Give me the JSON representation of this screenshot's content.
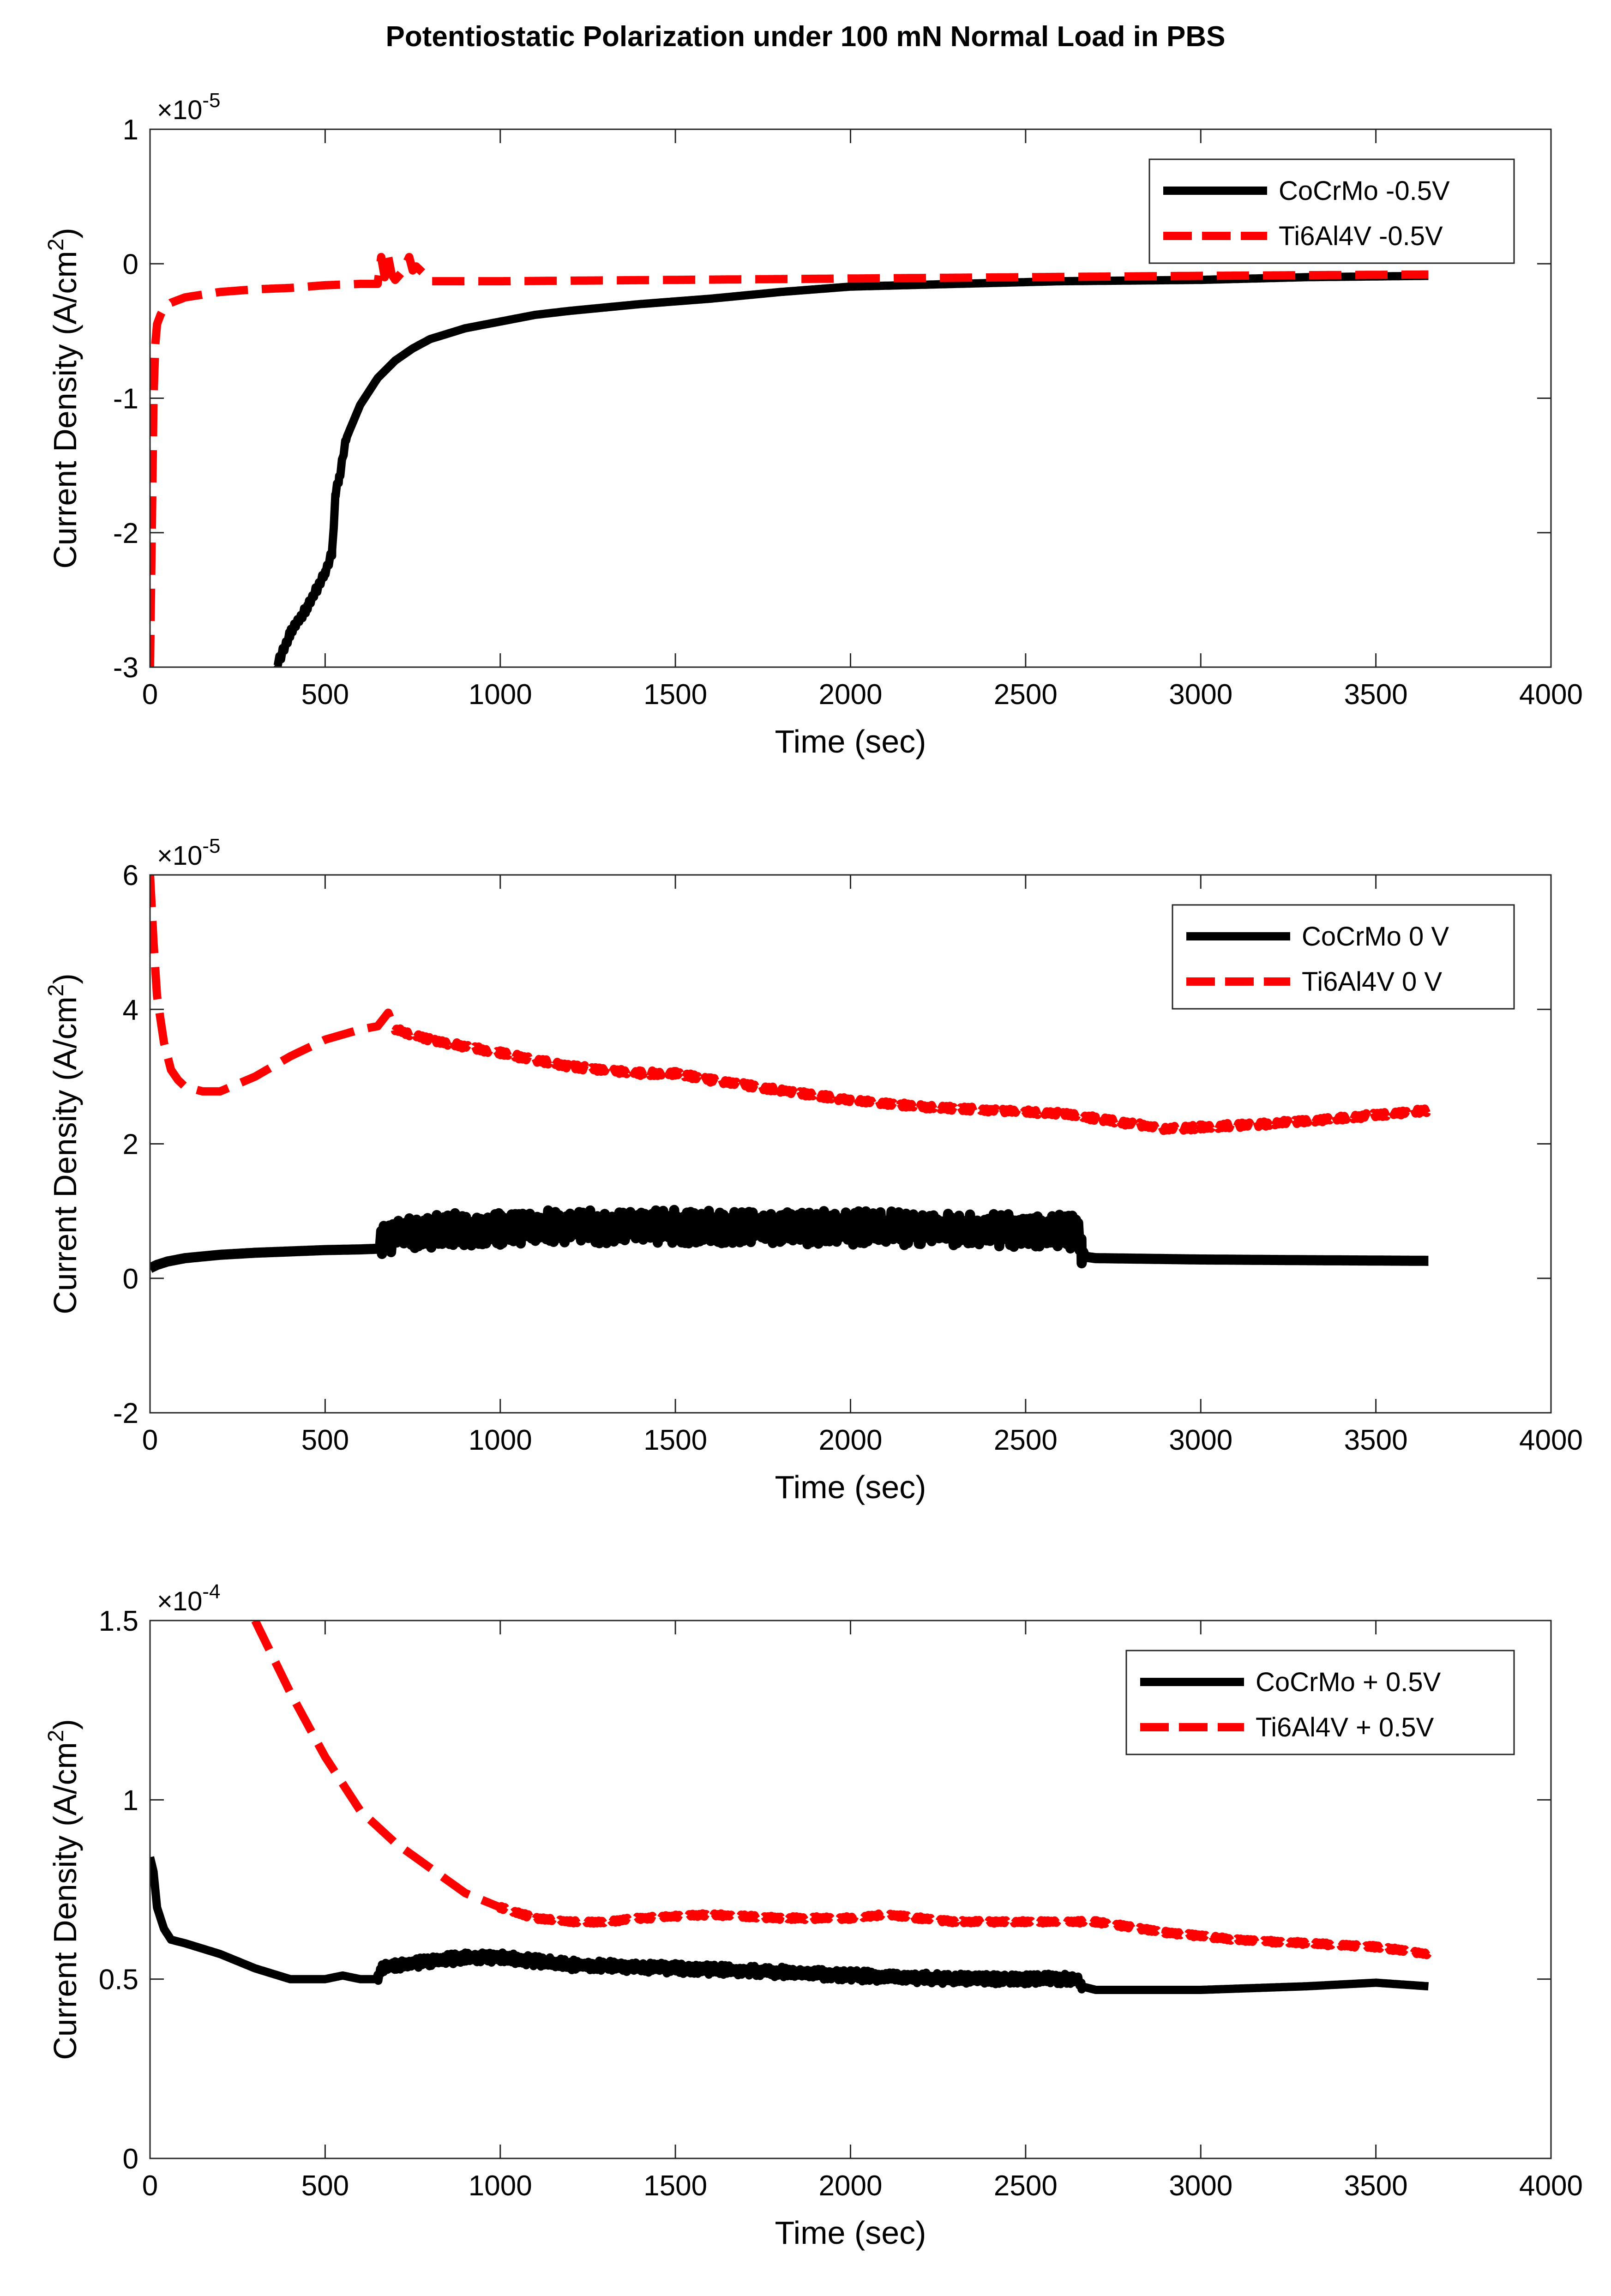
{
  "title": "Potentiostatic Polarization under 100 mN Normal Load in PBS",
  "chart_data": [
    {
      "type": "line",
      "xlabel": "Time (sec)",
      "ylabel_main": "Current Density (A/cm",
      "ylabel_sup": "2",
      "ylabel_close": ")",
      "exponent_base": "×10",
      "exponent_power": "-5",
      "xlim": [
        0,
        4000
      ],
      "ylim": [
        -3,
        1
      ],
      "xticks": [
        0,
        500,
        1000,
        1500,
        2000,
        2500,
        3000,
        3500,
        4000
      ],
      "xtick_labels": [
        "0",
        "500",
        "1000",
        "1500",
        "2000",
        "2500",
        "3000",
        "3500",
        "4000"
      ],
      "yticks": [
        -3,
        -2,
        -1,
        0,
        1
      ],
      "ytick_labels": [
        "-3",
        "-2",
        "-1",
        "0",
        "1"
      ],
      "legend_position": "top-right",
      "series": [
        {
          "name": "CoCrMo -0.5V",
          "color": "#000000",
          "dash": "solid",
          "noise": 0.03,
          "noise_range": [
            350,
            560
          ],
          "x": [
            360,
            400,
            450,
            500,
            520,
            530,
            540,
            560,
            600,
            650,
            700,
            750,
            800,
            900,
            1000,
            1100,
            1200,
            1400,
            1600,
            1800,
            2000,
            2300,
            2600,
            3000,
            3300,
            3650
          ],
          "y": [
            -3.0,
            -2.75,
            -2.55,
            -2.3,
            -2.15,
            -1.7,
            -1.6,
            -1.3,
            -1.05,
            -0.85,
            -0.72,
            -0.63,
            -0.56,
            -0.48,
            -0.43,
            -0.38,
            -0.35,
            -0.3,
            -0.26,
            -0.21,
            -0.17,
            -0.15,
            -0.13,
            -0.12,
            -0.1,
            -0.09
          ]
        },
        {
          "name": "Ti6Al4V -0.5V",
          "color": "#ff0000",
          "dash": "dashed",
          "noise": 0,
          "noise_range": [
            0,
            0
          ],
          "x": [
            0,
            5,
            10,
            15,
            20,
            30,
            40,
            60,
            80,
            100,
            150,
            200,
            300,
            400,
            500,
            600,
            650,
            660,
            670,
            680,
            690,
            700,
            720,
            740,
            750,
            760,
            780,
            800,
            1000,
            1500,
            2000,
            2500,
            3000,
            3650
          ],
          "y": [
            -3.0,
            -2.0,
            -1.0,
            -0.6,
            -0.45,
            -0.38,
            -0.33,
            -0.29,
            -0.27,
            -0.25,
            -0.23,
            -0.21,
            -0.19,
            -0.18,
            -0.16,
            -0.15,
            -0.15,
            0.05,
            -0.1,
            0.05,
            -0.08,
            -0.12,
            -0.06,
            0.05,
            -0.05,
            -0.02,
            -0.07,
            -0.13,
            -0.13,
            -0.12,
            -0.11,
            -0.1,
            -0.09,
            -0.08
          ]
        }
      ]
    },
    {
      "type": "line",
      "xlabel": "Time (sec)",
      "ylabel_main": "Current Density (A/cm",
      "ylabel_sup": "2",
      "ylabel_close": ")",
      "exponent_base": "×10",
      "exponent_power": "-5",
      "xlim": [
        0,
        4000
      ],
      "ylim": [
        -2,
        6
      ],
      "xticks": [
        0,
        500,
        1000,
        1500,
        2000,
        2500,
        3000,
        3500,
        4000
      ],
      "xtick_labels": [
        "0",
        "500",
        "1000",
        "1500",
        "2000",
        "2500",
        "3000",
        "3500",
        "4000"
      ],
      "yticks": [
        -2,
        0,
        2,
        4,
        6
      ],
      "ytick_labels": [
        "-2",
        "0",
        "2",
        "4",
        "6"
      ],
      "legend_position": "top-right",
      "series": [
        {
          "name": "CoCrMo 0 V",
          "color": "#000000",
          "dash": "solid",
          "noise": 0.25,
          "noise_range": [
            660,
            2660
          ],
          "x": [
            0,
            20,
            50,
            100,
            200,
            300,
            400,
            500,
            600,
            650,
            660,
            670,
            700,
            800,
            1000,
            1200,
            1500,
            1800,
            2000,
            2200,
            2400,
            2600,
            2650,
            2660,
            2670,
            2700,
            3000,
            3300,
            3650
          ],
          "y": [
            0.15,
            0.2,
            0.25,
            0.3,
            0.35,
            0.38,
            0.4,
            0.42,
            0.43,
            0.44,
            0.5,
            0.6,
            0.65,
            0.7,
            0.75,
            0.77,
            0.77,
            0.76,
            0.75,
            0.74,
            0.72,
            0.7,
            0.68,
            0.45,
            0.32,
            0.3,
            0.28,
            0.27,
            0.26
          ]
        },
        {
          "name": "Ti6Al4V 0 V",
          "color": "#ff0000",
          "dash": "dashed",
          "noise": 0.04,
          "noise_range": [
            700,
            3650
          ],
          "x": [
            0,
            10,
            20,
            40,
            60,
            80,
            100,
            150,
            200,
            300,
            400,
            500,
            600,
            650,
            680,
            700,
            800,
            1000,
            1200,
            1400,
            1500,
            1600,
            1800,
            2000,
            2200,
            2400,
            2600,
            2700,
            2800,
            2900,
            3000,
            3200,
            3400,
            3650
          ],
          "y": [
            6.0,
            5.0,
            4.2,
            3.5,
            3.1,
            2.95,
            2.85,
            2.78,
            2.78,
            3.0,
            3.3,
            3.55,
            3.7,
            3.75,
            3.95,
            3.7,
            3.55,
            3.35,
            3.15,
            3.05,
            3.05,
            2.95,
            2.8,
            2.65,
            2.55,
            2.5,
            2.45,
            2.38,
            2.3,
            2.22,
            2.25,
            2.3,
            2.38,
            2.5
          ]
        }
      ]
    },
    {
      "type": "line",
      "xlabel": "Time (sec)",
      "ylabel_main": "Current Density (A/cm",
      "ylabel_sup": "2",
      "ylabel_close": ")",
      "exponent_base": "×10",
      "exponent_power": "-4",
      "xlim": [
        0,
        4000
      ],
      "ylim": [
        0,
        1.5
      ],
      "xticks": [
        0,
        500,
        1000,
        1500,
        2000,
        2500,
        3000,
        3500,
        4000
      ],
      "xtick_labels": [
        "0",
        "500",
        "1000",
        "1500",
        "2000",
        "2500",
        "3000",
        "3500",
        "4000"
      ],
      "yticks": [
        0,
        0.5,
        1,
        1.5
      ],
      "ytick_labels": [
        "0",
        "0.5",
        "1",
        "1.5"
      ],
      "legend_position": "top-right",
      "series": [
        {
          "name": "CoCrMo + 0.5V",
          "color": "#000000",
          "dash": "solid",
          "noise": 0.015,
          "noise_range": [
            650,
            2660
          ],
          "x": [
            0,
            10,
            20,
            40,
            60,
            100,
            200,
            300,
            400,
            500,
            550,
            600,
            650,
            660,
            700,
            800,
            900,
            1000,
            1200,
            1500,
            1800,
            2000,
            2300,
            2600,
            2650,
            2660,
            2700,
            3000,
            3300,
            3500,
            3650
          ],
          "y": [
            0.84,
            0.8,
            0.7,
            0.64,
            0.61,
            0.6,
            0.57,
            0.53,
            0.5,
            0.5,
            0.51,
            0.5,
            0.5,
            0.53,
            0.54,
            0.55,
            0.56,
            0.56,
            0.54,
            0.53,
            0.52,
            0.51,
            0.5,
            0.5,
            0.5,
            0.48,
            0.47,
            0.47,
            0.48,
            0.49,
            0.48
          ]
        },
        {
          "name": "Ti6Al4V + 0.5V",
          "color": "#ff0000",
          "dash": "dashed",
          "noise": 0.005,
          "noise_range": [
            1000,
            3650
          ],
          "x": [
            300,
            400,
            500,
            600,
            700,
            800,
            900,
            1000,
            1100,
            1200,
            1300,
            1400,
            1600,
            1800,
            2000,
            2100,
            2300,
            2500,
            2700,
            2900,
            3100,
            3300,
            3500,
            3650
          ],
          "y": [
            1.5,
            1.3,
            1.12,
            0.97,
            0.88,
            0.81,
            0.74,
            0.7,
            0.67,
            0.66,
            0.66,
            0.67,
            0.68,
            0.67,
            0.67,
            0.68,
            0.66,
            0.66,
            0.66,
            0.63,
            0.61,
            0.6,
            0.59,
            0.57
          ]
        }
      ]
    }
  ]
}
